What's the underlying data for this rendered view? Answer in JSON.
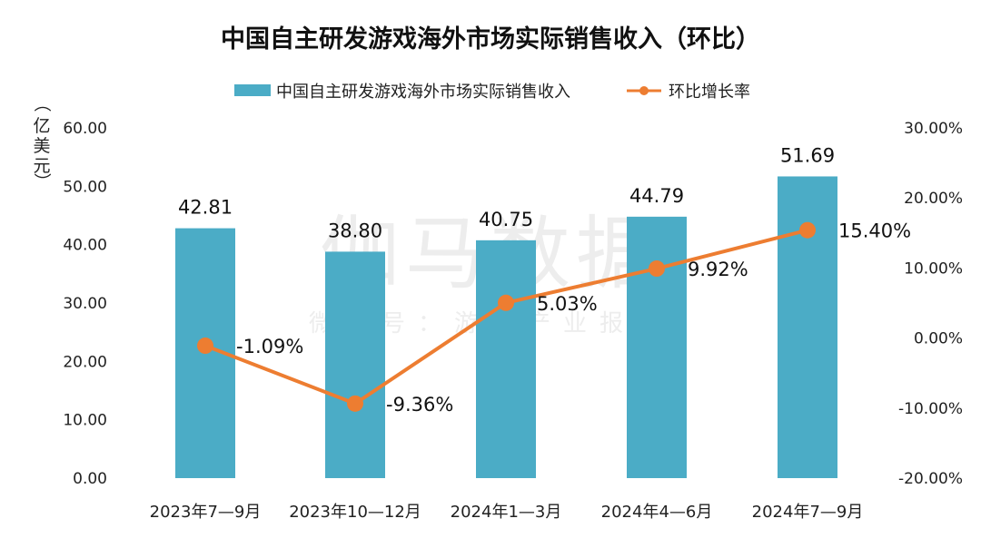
{
  "chart_data": {
    "type": "bar",
    "title": "中国自主研发游戏海外市场实际销售收入（环比）",
    "ylabel_chars": [
      "（",
      "亿",
      "美",
      "元",
      "）"
    ],
    "categories": [
      "2023年7—9月",
      "2023年10—12月",
      "2024年1—3月",
      "2024年4—6月",
      "2024年7—9月"
    ],
    "series": [
      {
        "name": "中国自主研发游戏海外市场实际销售收入",
        "type": "bar",
        "axis": "left",
        "values": [
          42.81,
          38.8,
          40.75,
          44.79,
          51.69
        ],
        "labels": [
          "42.81",
          "38.80",
          "40.75",
          "44.79",
          "51.69"
        ],
        "color": "#4bacc6"
      },
      {
        "name": "环比增长率",
        "type": "line",
        "axis": "right",
        "values": [
          -1.09,
          -9.36,
          5.03,
          9.92,
          15.4
        ],
        "labels": [
          "-1.09%",
          "-9.36%",
          "5.03%",
          "9.92%",
          "15.40%"
        ],
        "color": "#ed7d31"
      }
    ],
    "y_left": {
      "min": 0,
      "max": 60,
      "ticks": [
        "0.00",
        "10.00",
        "20.00",
        "30.00",
        "40.00",
        "50.00",
        "60.00"
      ]
    },
    "y_right": {
      "min": -20,
      "max": 30,
      "ticks": [
        "-20.00%",
        "-10.00%",
        "0.00%",
        "10.00%",
        "20.00%",
        "30.00%"
      ]
    },
    "legend_position": "top-center",
    "grid": false
  },
  "watermark": {
    "main": "伽马数据",
    "sub": "微信号：游戏产业报告"
  }
}
